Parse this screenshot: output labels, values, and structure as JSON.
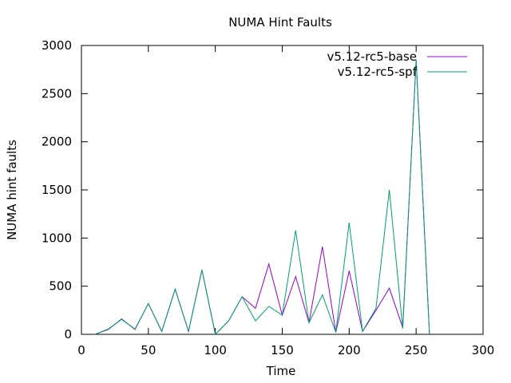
{
  "chart_data": {
    "type": "line",
    "title": "NUMA Hint Faults",
    "xlabel": "Time",
    "ylabel": "NUMA hint faults",
    "xlim": [
      0,
      300
    ],
    "ylim": [
      0,
      3000
    ],
    "xticks": [
      0,
      50,
      100,
      150,
      200,
      250,
      300
    ],
    "yticks": [
      0,
      500,
      1000,
      1500,
      2000,
      2500,
      3000
    ],
    "legend_position": "top-right",
    "grid": false,
    "series": [
      {
        "name": "v5.12-rc5-base",
        "color": "#9400d3",
        "x": [
          10,
          20,
          30,
          40,
          50,
          60,
          70,
          80,
          90,
          100,
          110,
          120,
          130,
          140,
          150,
          160,
          170,
          180,
          190,
          200,
          210,
          220,
          230,
          240,
          250,
          260
        ],
        "y": [
          0,
          50,
          160,
          50,
          320,
          30,
          470,
          30,
          670,
          0,
          140,
          390,
          270,
          730,
          200,
          600,
          120,
          910,
          20,
          660,
          30,
          250,
          480,
          70,
          2850,
          0
        ]
      },
      {
        "name": "v5.12-rc5-spf",
        "color": "#009e73",
        "x": [
          10,
          20,
          30,
          40,
          50,
          60,
          70,
          80,
          90,
          100,
          110,
          120,
          130,
          140,
          150,
          160,
          170,
          180,
          190,
          200,
          210,
          220,
          230,
          240,
          250,
          260
        ],
        "y": [
          0,
          55,
          155,
          55,
          320,
          30,
          470,
          30,
          670,
          0,
          140,
          390,
          140,
          290,
          200,
          1080,
          120,
          410,
          20,
          1160,
          30,
          270,
          1500,
          60,
          2850,
          0
        ]
      }
    ]
  }
}
